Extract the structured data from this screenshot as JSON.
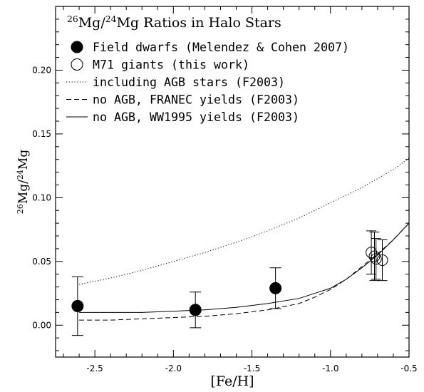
{
  "chart_data": {
    "type": "scatter",
    "title": "26Mg/24Mg Ratios in Halo Stars",
    "xlabel": "[Fe/H]",
    "ylabel": "26Mg/24Mg",
    "xlim": [
      -2.75,
      -0.5
    ],
    "ylim": [
      -0.025,
      0.25
    ],
    "x_ticks": [
      "-2.5",
      "-2.0",
      "-1.5",
      "-1.0",
      "-0.5"
    ],
    "y_ticks": [
      "0.00",
      "0.05",
      "0.10",
      "0.15",
      "0.20"
    ],
    "x_tick_values": [
      -2.5,
      -2.0,
      -1.5,
      -1.0,
      -0.5
    ],
    "y_tick_values": [
      0.0,
      0.05,
      0.1,
      0.15,
      0.2
    ],
    "grid": false,
    "legend_position": "top-left",
    "legend": [
      {
        "label": "Field dwarfs (Melendez & Cohen 2007)",
        "marker": "filled-circle"
      },
      {
        "label": "M71 giants (this work)",
        "marker": "open-circle"
      },
      {
        "label": "including AGB stars (F2003)",
        "line": "dotted"
      },
      {
        "label": "no AGB, FRANEC yields (F2003)",
        "line": "dashed"
      },
      {
        "label": "no AGB, WW1995 yields (F2003)",
        "line": "solid"
      }
    ],
    "series": [
      {
        "name": "Field dwarfs (Melendez & Cohen 2007)",
        "kind": "points",
        "marker": "filled-circle",
        "x": [
          -2.61,
          -1.86,
          -1.35
        ],
        "y": [
          0.015,
          0.012,
          0.029
        ],
        "yerr": [
          0.023,
          0.014,
          0.016
        ]
      },
      {
        "name": "M71 giants (this work)",
        "kind": "points",
        "marker": "open-circle",
        "x": [
          -0.74,
          -0.72,
          -0.71,
          -0.67
        ],
        "y": [
          0.057,
          0.054,
          0.052,
          0.051
        ],
        "yerr": [
          0.017,
          0.019,
          0.016,
          0.016
        ]
      },
      {
        "name": "including AGB stars (F2003)",
        "kind": "line",
        "style": "dotted",
        "x": [
          -2.6,
          -2.4,
          -2.2,
          -2.0,
          -1.8,
          -1.6,
          -1.4,
          -1.2,
          -1.0,
          -0.8,
          -0.6,
          -0.5
        ],
        "y": [
          0.032,
          0.037,
          0.043,
          0.05,
          0.057,
          0.065,
          0.074,
          0.084,
          0.096,
          0.108,
          0.122,
          0.131
        ]
      },
      {
        "name": "no AGB, FRANEC yields (F2003)",
        "kind": "line",
        "style": "dashed",
        "x": [
          -2.6,
          -2.4,
          -2.2,
          -2.0,
          -1.8,
          -1.6,
          -1.4,
          -1.2,
          -1.1,
          -1.0,
          -0.9,
          -0.8,
          -0.7,
          -0.6,
          -0.5
        ],
        "y": [
          0.004,
          0.004,
          0.005,
          0.006,
          0.007,
          0.009,
          0.012,
          0.017,
          0.022,
          0.028,
          0.036,
          0.046,
          0.056,
          0.067,
          0.08
        ]
      },
      {
        "name": "no AGB, WW1995 yields (F2003)",
        "kind": "line",
        "style": "solid",
        "x": [
          -2.6,
          -2.4,
          -2.2,
          -2.0,
          -1.8,
          -1.6,
          -1.4,
          -1.2,
          -1.1,
          -1.0,
          -0.9,
          -0.8,
          -0.7,
          -0.6,
          -0.5
        ],
        "y": [
          0.01,
          0.01,
          0.01,
          0.011,
          0.012,
          0.014,
          0.017,
          0.021,
          0.025,
          0.029,
          0.036,
          0.045,
          0.055,
          0.067,
          0.08
        ]
      }
    ]
  }
}
